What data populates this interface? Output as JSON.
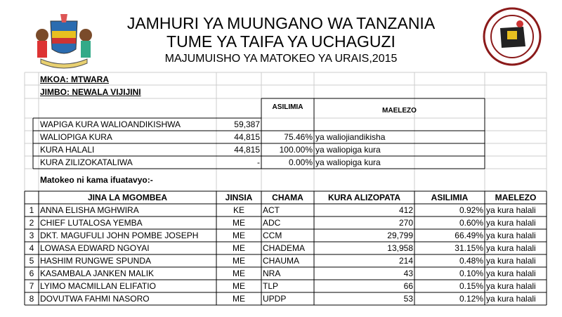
{
  "header": {
    "title": "JAMHURI YA MUUNGANO WA TANZANIA",
    "subtitle": "TUME YA TAIFA YA UCHAGUZI",
    "report_title": "MAJUMUISHO YA MATOKEO YA URAIS,2015"
  },
  "summary": {
    "region": "MKOA: MTWARA",
    "constituency": "JIMBO: NEWALA VIJIJINI",
    "columns": [
      "ASILIMIA",
      "MAELEZO"
    ],
    "rows": [
      {
        "label": "WAPIGA KURA WALIOANDIKISHWA",
        "count": "59,387"
      },
      {
        "label": "WALIOPIGA KURA",
        "count": "44,815",
        "percent": "75.46%",
        "note": "ya waliojiandikisha"
      },
      {
        "label": "KURA HALALI",
        "count": "44,815",
        "percent": "100.00%",
        "note": "ya waliopiga kura"
      },
      {
        "label": "KURA ZILIZOKATALIWA",
        "count": "-",
        "percent": "0.00%",
        "note": "ya waliopiga kura"
      }
    ]
  },
  "results_intro": "Matokeo ni kama ifuatavyo:-",
  "results": {
    "columns": [
      "JINA LA MGOMBEA",
      "JINSIA",
      "CHAMA",
      "KURA ALIZOPATA",
      "ASILIMIA",
      "MAELEZO"
    ],
    "rows": [
      [
        "1",
        "ANNA ELISHA MGHWIRA",
        "KE",
        "ACT",
        "412",
        "0.92%",
        "ya kura halali"
      ],
      [
        "2",
        "CHIEF LUTALOSA YEMBA",
        "ME",
        "ADC",
        "270",
        "0.60%",
        "ya kura halali"
      ],
      [
        "3",
        "DKT. MAGUFULI JOHN POMBE JOSEPH",
        "ME",
        "CCM",
        "29,799",
        "66.49%",
        "ya kura halali"
      ],
      [
        "4",
        "LOWASA EDWARD NGOYAI",
        "ME",
        "CHADEMA",
        "13,958",
        "31.15%",
        "ya kura halali"
      ],
      [
        "5",
        "HASHIM RUNGWE SPUNDA",
        "ME",
        "CHAUMA",
        "214",
        "0.48%",
        "ya kura halali"
      ],
      [
        "6",
        "KASAMBALA JANKEN MALIK",
        "ME",
        "NRA",
        "43",
        "0.10%",
        "ya kura halali"
      ],
      [
        "7",
        "LYIMO MACMILLAN ELIFATIO",
        "ME",
        "TLP",
        "66",
        "0.15%",
        "ya kura halali"
      ],
      [
        "8",
        "DOVUTWA FAHMI NASORO",
        "ME",
        "UPDP",
        "53",
        "0.12%",
        "ya kura halali"
      ]
    ]
  }
}
